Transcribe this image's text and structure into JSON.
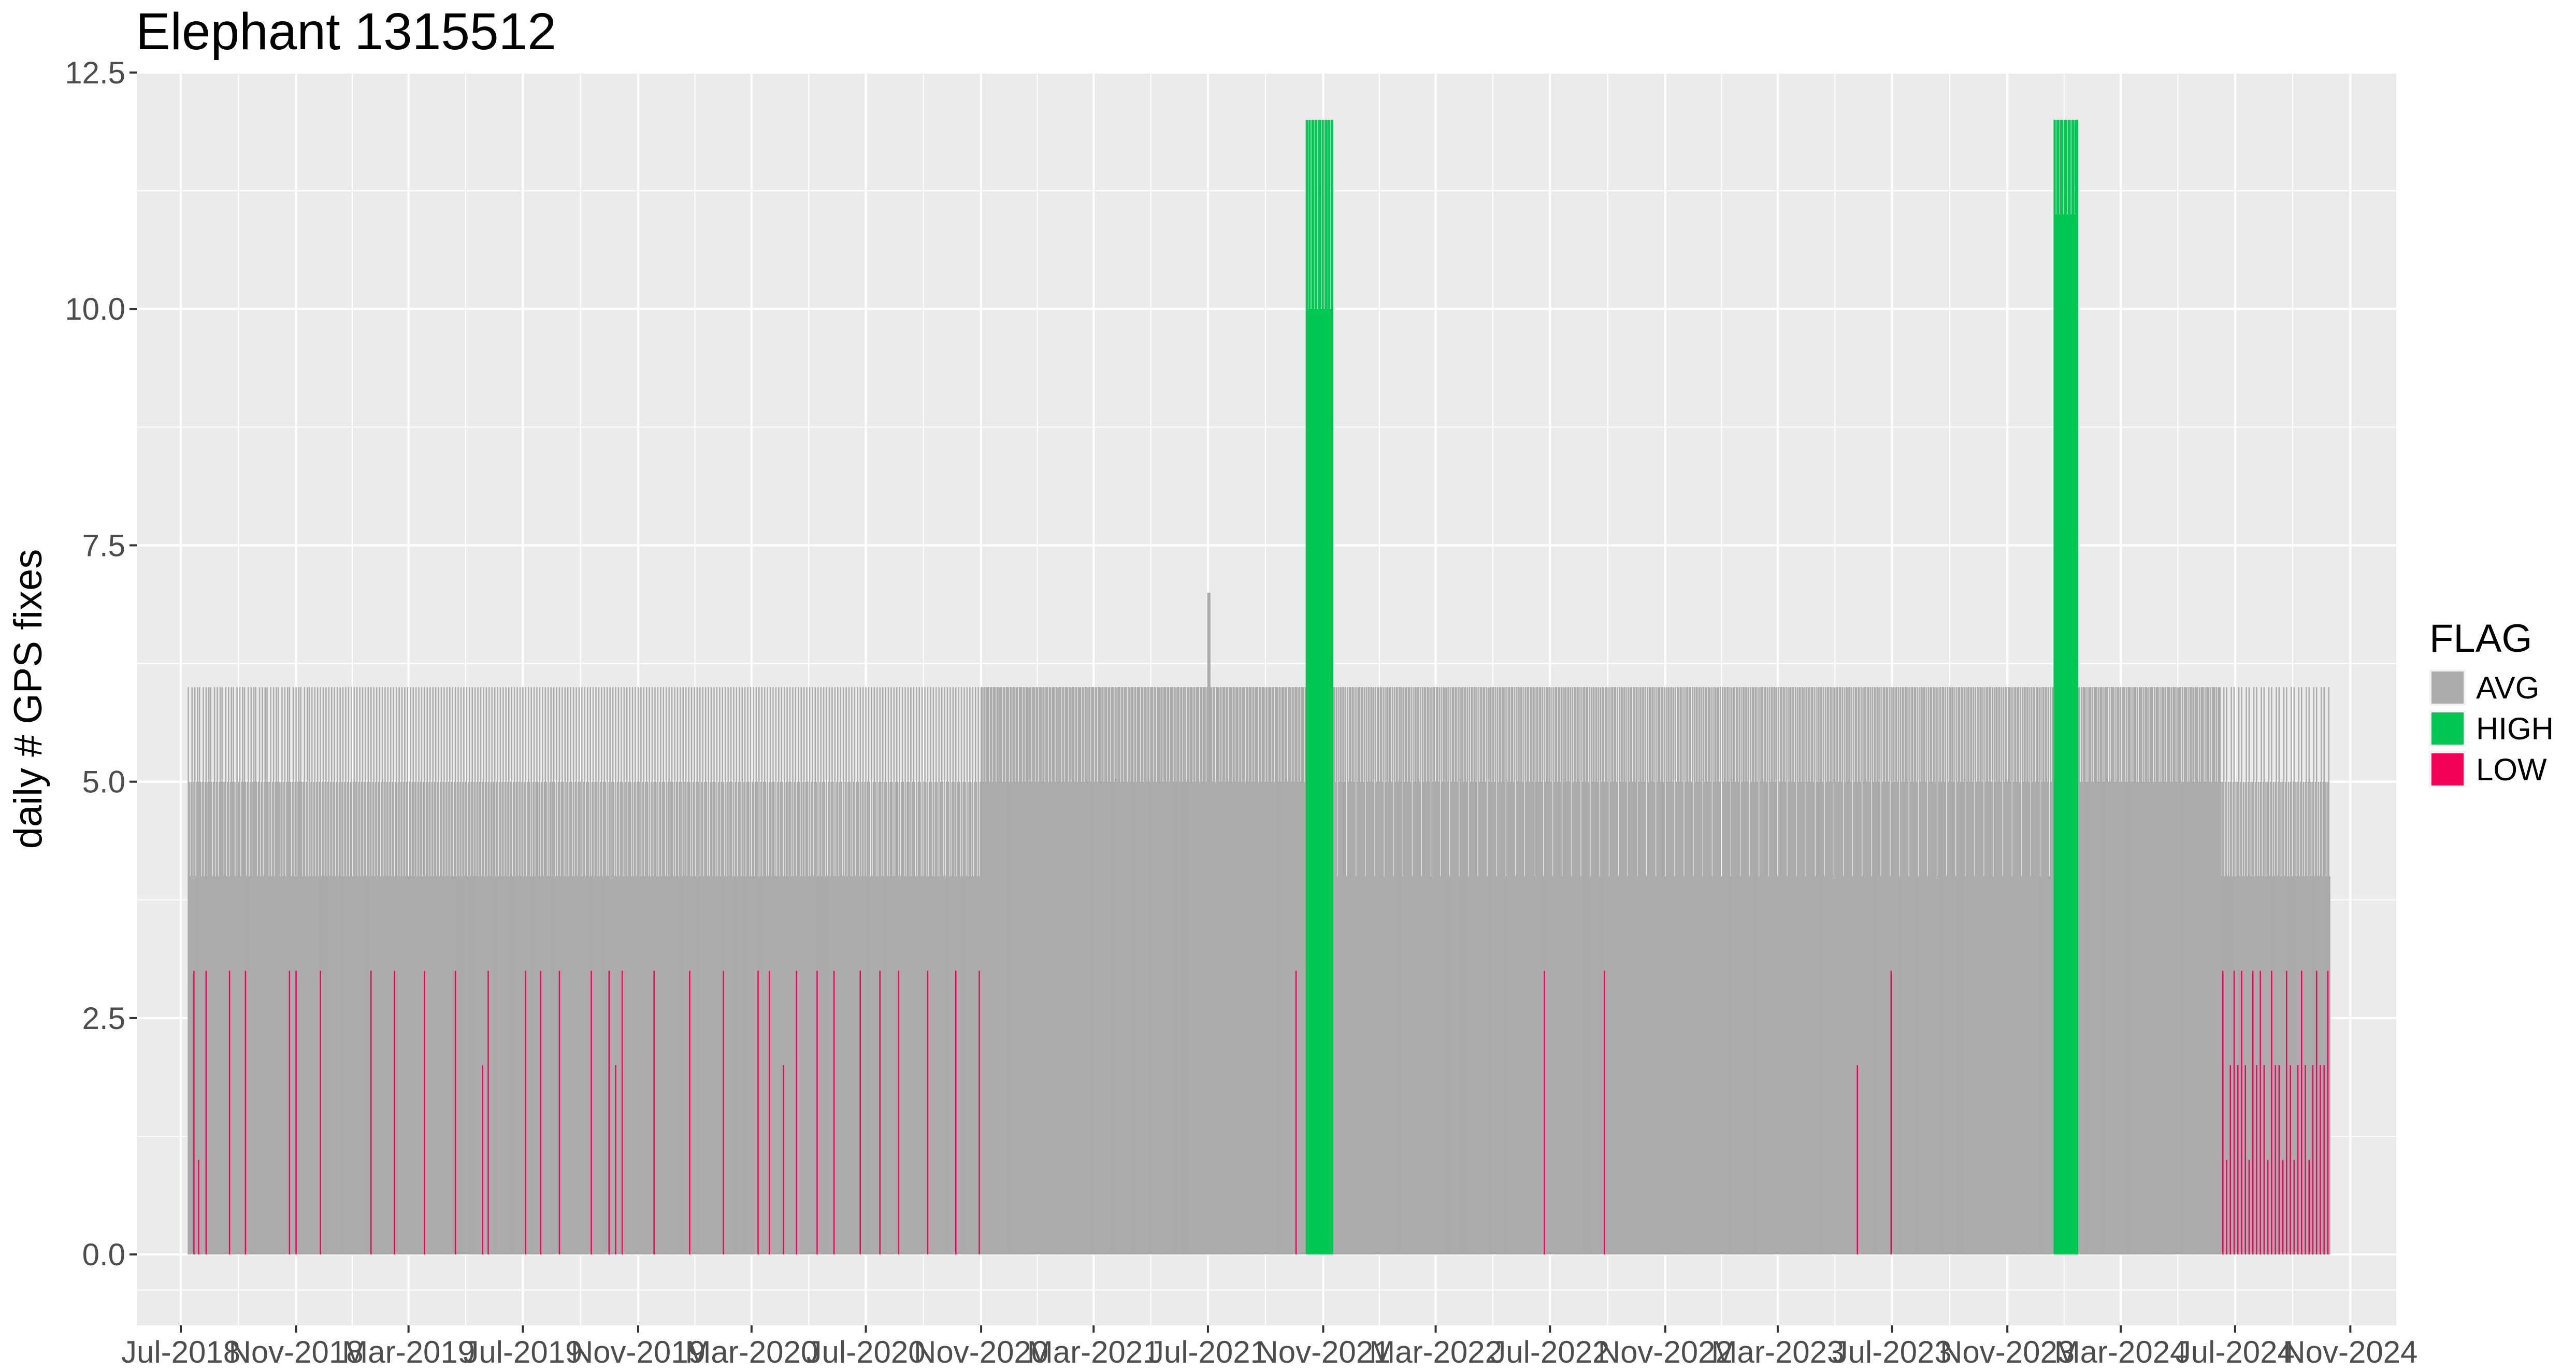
{
  "chart_data": {
    "type": "bar",
    "title": "Elephant 1315512",
    "xlabel": "",
    "ylabel": "daily # GPS fixes",
    "x_axis": {
      "type": "date",
      "range": [
        "2018-05-15",
        "2024-12-20"
      ],
      "ticks": [
        "2018-07-01",
        "2018-11-01",
        "2019-03-01",
        "2019-07-01",
        "2019-11-01",
        "2020-03-01",
        "2020-07-01",
        "2020-11-01",
        "2021-03-01",
        "2021-07-01",
        "2021-11-01",
        "2022-03-01",
        "2022-07-01",
        "2022-11-01",
        "2023-03-01",
        "2023-07-01",
        "2023-11-01",
        "2024-03-01",
        "2024-07-01",
        "2024-11-01"
      ],
      "tick_labels": [
        "Jul-2018",
        "Nov-2018",
        "Mar-2019",
        "Jul-2019",
        "Nov-2019",
        "Mar-2020",
        "Jul-2020",
        "Nov-2020",
        "Mar-2021",
        "Jul-2021",
        "Nov-2021",
        "Mar-2022",
        "Jul-2022",
        "Nov-2022",
        "Mar-2023",
        "Jul-2023",
        "Nov-2023",
        "Mar-2024",
        "Jul-2024",
        "Nov-2024"
      ]
    },
    "y_axis": {
      "range": [
        -0.75,
        12.5
      ],
      "ticks": [
        0,
        2.5,
        5,
        7.5,
        10,
        12.5
      ],
      "tick_labels": [
        "0.0",
        "2.5",
        "5.0",
        "7.5",
        "10.0",
        "12.5"
      ]
    },
    "grid": true,
    "legend": {
      "title": "FLAG",
      "position": "right",
      "entries": [
        {
          "label": "AVG",
          "color": "#ababab"
        },
        {
          "label": "HIGH",
          "color": "#00c853"
        },
        {
          "label": "LOW",
          "color": "#f50057"
        }
      ]
    },
    "series": [
      {
        "name": "AVG",
        "color": "#ababab",
        "segments": [
          {
            "start": "2018-07-09",
            "end": "2018-11-14",
            "values": [
              6,
              5,
              4,
              5,
              6,
              4,
              5,
              6,
              4,
              5,
              6,
              5
            ]
          },
          {
            "start": "2018-11-15",
            "end": "2019-06-30",
            "values": [
              6,
              4,
              5,
              6,
              4,
              5,
              6,
              4,
              5
            ]
          },
          {
            "start": "2019-07-01",
            "end": "2020-06-30",
            "values": [
              6,
              4,
              5,
              6,
              4,
              5,
              6,
              5,
              4
            ]
          },
          {
            "start": "2020-07-01",
            "end": "2020-10-31",
            "values": [
              6,
              4,
              5,
              6,
              5,
              4
            ]
          },
          {
            "start": "2020-11-01",
            "end": "2021-10-13",
            "values": [
              6,
              6,
              5,
              6,
              6,
              5,
              6
            ]
          },
          {
            "start": "2021-07-01",
            "end": "2021-07-03",
            "values": [
              7
            ]
          },
          {
            "start": "2021-11-12",
            "end": "2023-12-20",
            "values": [
              6,
              6,
              5,
              6,
              4,
              6,
              5,
              6,
              6,
              5
            ]
          },
          {
            "start": "2024-01-16",
            "end": "2024-06-15",
            "values": [
              6,
              6,
              5,
              6,
              5,
              6
            ]
          },
          {
            "start": "2024-06-16",
            "end": "2024-10-10",
            "values": [
              5,
              4,
              5,
              6,
              4,
              5,
              6,
              4
            ]
          }
        ]
      },
      {
        "name": "HIGH",
        "color": "#00c853",
        "segments": [
          {
            "start": "2021-10-14",
            "end": "2021-11-11",
            "values": [
              12,
              12,
              10,
              12,
              12,
              10,
              12
            ]
          },
          {
            "start": "2023-12-21",
            "end": "2024-01-15",
            "values": [
              12,
              12,
              11,
              12
            ]
          }
        ]
      },
      {
        "name": "LOW",
        "color": "#f50057",
        "days": [
          [
            "2018-07-15",
            3
          ],
          [
            "2018-07-20",
            1
          ],
          [
            "2018-07-28",
            3
          ],
          [
            "2018-08-22",
            3
          ],
          [
            "2018-09-08",
            3
          ],
          [
            "2018-10-25",
            3
          ],
          [
            "2018-11-01",
            3
          ],
          [
            "2018-11-27",
            3
          ],
          [
            "2019-01-20",
            3
          ],
          [
            "2019-02-14",
            3
          ],
          [
            "2019-03-18",
            3
          ],
          [
            "2019-04-20",
            3
          ],
          [
            "2019-05-19",
            2
          ],
          [
            "2019-05-25",
            3
          ],
          [
            "2019-07-04",
            3
          ],
          [
            "2019-07-20",
            3
          ],
          [
            "2019-08-09",
            3
          ],
          [
            "2019-09-12",
            3
          ],
          [
            "2019-10-01",
            3
          ],
          [
            "2019-10-08",
            2
          ],
          [
            "2019-10-15",
            3
          ],
          [
            "2019-11-18",
            3
          ],
          [
            "2019-12-26",
            3
          ],
          [
            "2020-01-31",
            3
          ],
          [
            "2020-03-08",
            3
          ],
          [
            "2020-03-20",
            3
          ],
          [
            "2020-04-04",
            2
          ],
          [
            "2020-04-18",
            3
          ],
          [
            "2020-05-10",
            3
          ],
          [
            "2020-05-28",
            3
          ],
          [
            "2020-06-25",
            3
          ],
          [
            "2020-07-16",
            3
          ],
          [
            "2020-08-05",
            3
          ],
          [
            "2020-09-05",
            3
          ],
          [
            "2020-10-05",
            3
          ],
          [
            "2020-10-30",
            3
          ],
          [
            "2021-10-03",
            3
          ],
          [
            "2022-06-25",
            3
          ],
          [
            "2022-08-28",
            3
          ],
          [
            "2023-05-25",
            2
          ],
          [
            "2023-06-30",
            3
          ],
          [
            "2024-06-18",
            3
          ],
          [
            "2024-06-22",
            1
          ],
          [
            "2024-06-26",
            2
          ],
          [
            "2024-06-30",
            3
          ],
          [
            "2024-07-04",
            2
          ],
          [
            "2024-07-08",
            3
          ],
          [
            "2024-07-12",
            2
          ],
          [
            "2024-07-16",
            1
          ],
          [
            "2024-07-20",
            3
          ],
          [
            "2024-07-24",
            2
          ],
          [
            "2024-07-28",
            3
          ],
          [
            "2024-08-01",
            2
          ],
          [
            "2024-08-05",
            1
          ],
          [
            "2024-08-09",
            3
          ],
          [
            "2024-08-13",
            2
          ],
          [
            "2024-08-17",
            2
          ],
          [
            "2024-08-21",
            1
          ],
          [
            "2024-08-25",
            3
          ],
          [
            "2024-08-29",
            2
          ],
          [
            "2024-09-02",
            1
          ],
          [
            "2024-09-06",
            2
          ],
          [
            "2024-09-10",
            3
          ],
          [
            "2024-09-14",
            2
          ],
          [
            "2024-09-18",
            1
          ],
          [
            "2024-09-22",
            2
          ],
          [
            "2024-09-26",
            3
          ],
          [
            "2024-09-30",
            2
          ],
          [
            "2024-10-04",
            2
          ],
          [
            "2024-10-08",
            3
          ]
        ]
      }
    ]
  }
}
